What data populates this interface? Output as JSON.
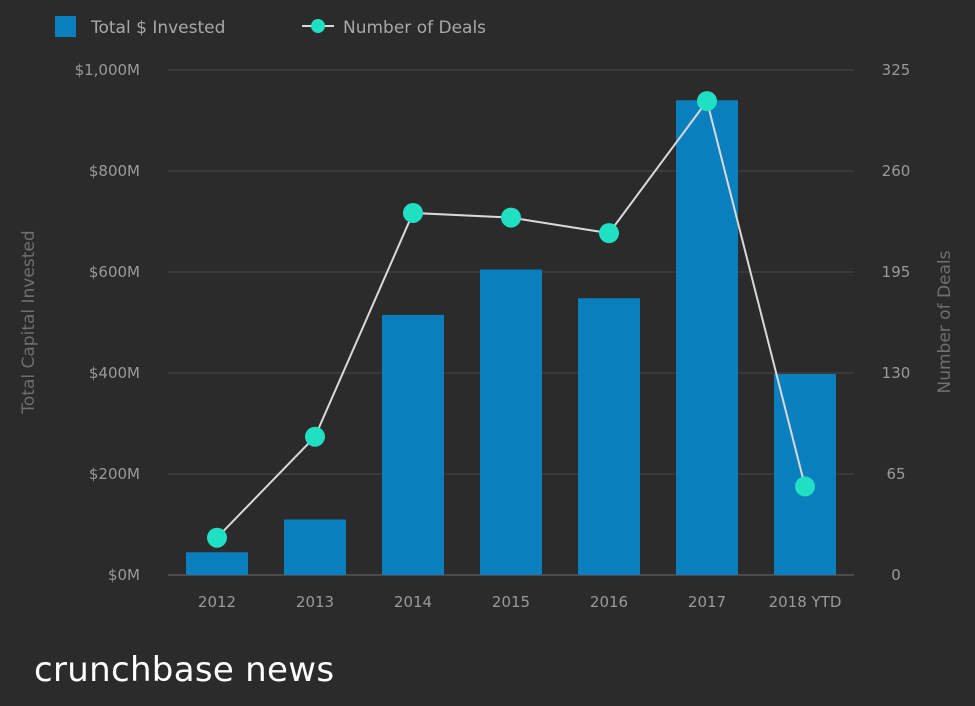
{
  "chart_data": {
    "type": "bar",
    "categories": [
      "2012",
      "2013",
      "2014",
      "2015",
      "2016",
      "2017",
      "2018 YTD"
    ],
    "series": [
      {
        "name": "Total $ Invested",
        "type": "bar",
        "axis": "left",
        "color": "#0a7fbd",
        "values": [
          45,
          110,
          515,
          605,
          548,
          940,
          398
        ]
      },
      {
        "name": "Number of Deals",
        "type": "line",
        "axis": "right",
        "color": "#1fe0c3",
        "line_color": "#d9d9d9",
        "values": [
          24,
          89,
          233,
          230,
          220,
          305,
          57
        ]
      }
    ],
    "ylabel": "Total Capital Invested",
    "y2label": "Number of Deals",
    "ylim": [
      0,
      1000
    ],
    "y2lim": [
      0,
      325
    ],
    "yticks": [
      "$0M",
      "$200M",
      "$400M",
      "$600M",
      "$800M",
      "$1,000M"
    ],
    "y2ticks": [
      "0",
      "65",
      "130",
      "195",
      "260",
      "325"
    ],
    "grid": true,
    "legend_position": "top-left",
    "background": "#2b2b2b"
  },
  "legend": {
    "bar_label": "Total $ Invested",
    "line_label": "Number of Deals"
  },
  "brand": "crunchbase news"
}
